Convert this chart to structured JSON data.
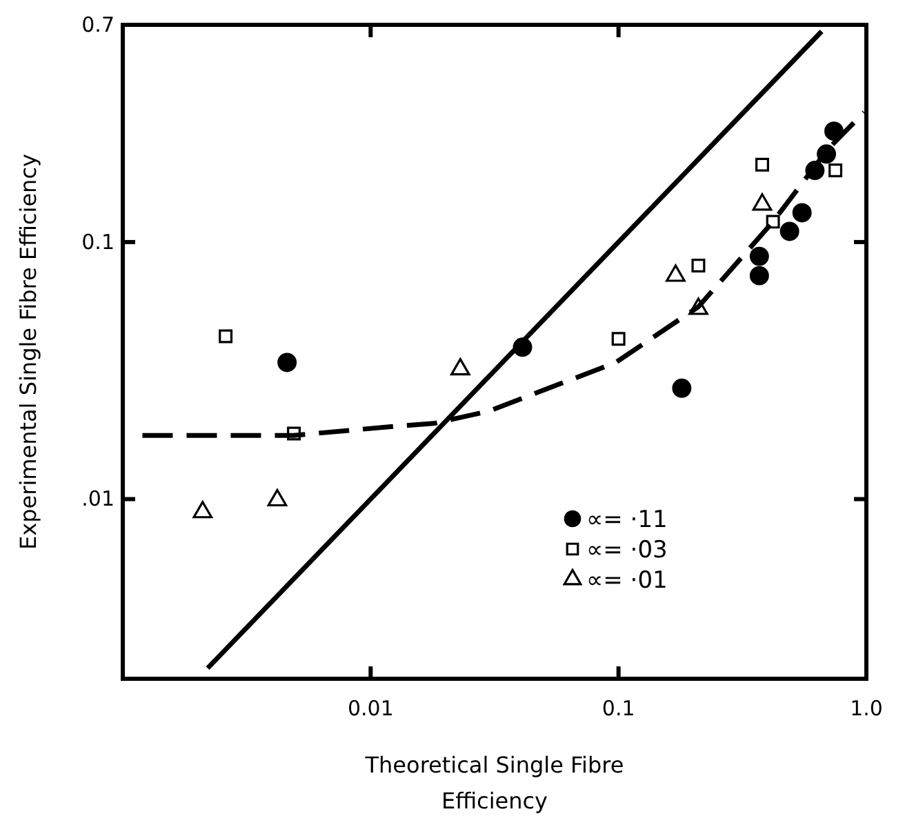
{
  "chart_data": {
    "type": "scatter",
    "xlabel": "Theoretical Single Fibre Efficiency",
    "ylabel": "Experimental Single Fibre Efficiency",
    "log": "xy",
    "xlim": [
      0.001,
      1
    ],
    "ylim": [
      0.002,
      0.7
    ],
    "xticks": [
      {
        "value": 0.01,
        "label": "0.01"
      },
      {
        "value": 0.1,
        "label": "0.1"
      },
      {
        "value": 1,
        "label": "1.0"
      }
    ],
    "yticks": [
      {
        "value": 0.01,
        "label": ".01"
      },
      {
        "value": 0.1,
        "label": "0.1"
      },
      {
        "value": 0.7,
        "label": "0.7"
      }
    ],
    "grid": false,
    "legend": "bottom right",
    "series": [
      {
        "name": "∝= ·11",
        "color": "#000000",
        "marker": "circle",
        "x": [
          0.0046,
          0.041,
          0.18,
          0.37,
          0.37,
          0.49,
          0.55,
          0.62,
          0.69,
          0.74
        ],
        "values": [
          0.034,
          0.039,
          0.027,
          0.088,
          0.074,
          0.11,
          0.13,
          0.19,
          0.22,
          0.27
        ]
      },
      {
        "name": "∝= ·03",
        "color": "#000000",
        "marker": "square",
        "x": [
          0.0026,
          0.0049,
          0.1,
          0.21,
          0.38,
          0.42,
          0.75
        ],
        "values": [
          0.043,
          0.018,
          0.042,
          0.081,
          0.2,
          0.12,
          0.19
        ]
      },
      {
        "name": "∝= ·01",
        "color": "#000000",
        "marker": "triangle",
        "x": [
          0.0021,
          0.0042,
          0.023,
          0.17,
          0.21,
          0.38
        ],
        "values": [
          0.0089,
          0.0099,
          0.032,
          0.074,
          0.055,
          0.14
        ]
      },
      {
        "type": "line",
        "color": "#000000",
        "marker": "none",
        "line_style": "solid",
        "x": [
          0.0022,
          0.66
        ],
        "values": [
          0.0022,
          0.66
        ]
      },
      {
        "type": "line",
        "color": "#000000",
        "marker": "none",
        "line_style": "dashed",
        "x": [
          0.0012,
          0.0049,
          0.0125,
          0.018,
          0.03,
          0.0975,
          0.21,
          0.42,
          0.7,
          0.98
        ],
        "values": [
          0.0177,
          0.0177,
          0.0192,
          0.0197,
          0.022,
          0.034,
          0.056,
          0.12,
          0.23,
          0.32
        ]
      }
    ]
  }
}
